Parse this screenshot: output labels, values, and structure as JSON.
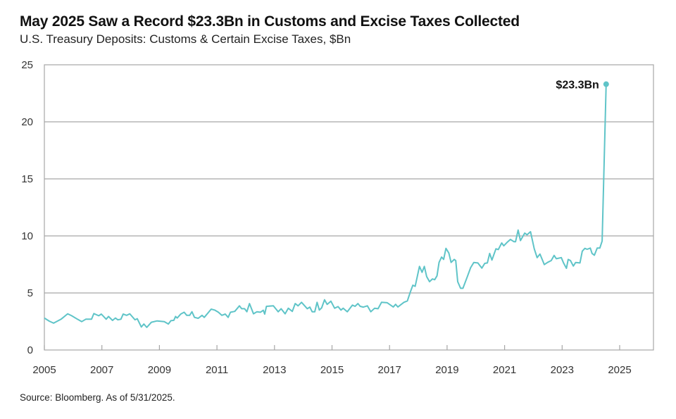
{
  "title": "May 2025 Saw a Record $23.3Bn in Customs and Excise Taxes Collected",
  "subtitle": "U.S. Treasury Deposits: Customs & Certain Excise Taxes, $Bn",
  "source": "Source: Bloomberg. As of 5/31/2025.",
  "colors": {
    "line": "#5fc4c8",
    "grid": "#a6a6a6",
    "axis": "#a6a6a6"
  },
  "chart_data": {
    "type": "line",
    "title": "May 2025 Saw a Record $23.3Bn in Customs and Excise Taxes Collected",
    "subtitle": "U.S. Treasury Deposits: Customs & Certain Excise Taxes, $Bn",
    "xlabel": "",
    "ylabel": "",
    "xlim": [
      2005,
      2026.2
    ],
    "ylim": [
      0,
      25
    ],
    "x_ticks": [
      "2005",
      "2007",
      "2009",
      "2011",
      "2013",
      "2015",
      "2017",
      "2019",
      "2021",
      "2023",
      "2025"
    ],
    "y_ticks": [
      "0",
      "5",
      "10",
      "15",
      "20",
      "25"
    ],
    "grid": "horizontal",
    "annotation": "$23.3Bn",
    "series": [
      {
        "points": [
          [
            2005.0,
            2.8
          ],
          [
            2005.17,
            2.53
          ],
          [
            2005.32,
            2.35
          ],
          [
            2005.58,
            2.7
          ],
          [
            2005.81,
            3.17
          ],
          [
            2005.95,
            3.0
          ],
          [
            2006.15,
            2.7
          ],
          [
            2006.3,
            2.49
          ],
          [
            2006.44,
            2.7
          ],
          [
            2006.64,
            2.7
          ],
          [
            2006.72,
            3.19
          ],
          [
            2006.89,
            3.0
          ],
          [
            2006.98,
            3.15
          ],
          [
            2007.15,
            2.7
          ],
          [
            2007.23,
            2.94
          ],
          [
            2007.37,
            2.59
          ],
          [
            2007.47,
            2.8
          ],
          [
            2007.55,
            2.65
          ],
          [
            2007.66,
            2.7
          ],
          [
            2007.74,
            3.15
          ],
          [
            2007.86,
            3.04
          ],
          [
            2007.97,
            3.17
          ],
          [
            2008.15,
            2.65
          ],
          [
            2008.23,
            2.74
          ],
          [
            2008.37,
            2.02
          ],
          [
            2008.46,
            2.28
          ],
          [
            2008.56,
            1.98
          ],
          [
            2008.72,
            2.43
          ],
          [
            2008.92,
            2.55
          ],
          [
            2009.17,
            2.49
          ],
          [
            2009.31,
            2.28
          ],
          [
            2009.4,
            2.57
          ],
          [
            2009.5,
            2.6
          ],
          [
            2009.56,
            2.94
          ],
          [
            2009.62,
            2.8
          ],
          [
            2009.74,
            3.15
          ],
          [
            2009.86,
            3.31
          ],
          [
            2009.95,
            3.04
          ],
          [
            2010.05,
            3.04
          ],
          [
            2010.13,
            3.35
          ],
          [
            2010.22,
            2.86
          ],
          [
            2010.35,
            2.78
          ],
          [
            2010.48,
            3.04
          ],
          [
            2010.56,
            2.86
          ],
          [
            2010.8,
            3.58
          ],
          [
            2010.92,
            3.5
          ],
          [
            2011.05,
            3.31
          ],
          [
            2011.17,
            3.04
          ],
          [
            2011.29,
            3.15
          ],
          [
            2011.39,
            2.86
          ],
          [
            2011.47,
            3.31
          ],
          [
            2011.62,
            3.38
          ],
          [
            2011.78,
            3.87
          ],
          [
            2011.86,
            3.62
          ],
          [
            2011.96,
            3.62
          ],
          [
            2012.04,
            3.35
          ],
          [
            2012.13,
            4.07
          ],
          [
            2012.27,
            3.17
          ],
          [
            2012.39,
            3.35
          ],
          [
            2012.51,
            3.31
          ],
          [
            2012.61,
            3.48
          ],
          [
            2012.66,
            3.15
          ],
          [
            2012.72,
            3.83
          ],
          [
            2012.96,
            3.87
          ],
          [
            2013.13,
            3.35
          ],
          [
            2013.23,
            3.62
          ],
          [
            2013.37,
            3.17
          ],
          [
            2013.48,
            3.66
          ],
          [
            2013.62,
            3.38
          ],
          [
            2013.72,
            4.07
          ],
          [
            2013.82,
            3.87
          ],
          [
            2013.94,
            4.18
          ],
          [
            2014.14,
            3.62
          ],
          [
            2014.23,
            3.76
          ],
          [
            2014.31,
            3.35
          ],
          [
            2014.4,
            3.35
          ],
          [
            2014.48,
            4.18
          ],
          [
            2014.56,
            3.5
          ],
          [
            2014.64,
            3.7
          ],
          [
            2014.74,
            4.4
          ],
          [
            2014.83,
            4.0
          ],
          [
            2014.96,
            4.28
          ],
          [
            2015.09,
            3.66
          ],
          [
            2015.21,
            3.8
          ],
          [
            2015.31,
            3.5
          ],
          [
            2015.39,
            3.66
          ],
          [
            2015.53,
            3.35
          ],
          [
            2015.71,
            3.93
          ],
          [
            2015.8,
            3.83
          ],
          [
            2015.9,
            4.07
          ],
          [
            2015.98,
            3.83
          ],
          [
            2016.09,
            3.76
          ],
          [
            2016.23,
            3.87
          ],
          [
            2016.35,
            3.35
          ],
          [
            2016.48,
            3.66
          ],
          [
            2016.6,
            3.62
          ],
          [
            2016.72,
            4.18
          ],
          [
            2016.92,
            4.14
          ],
          [
            2017.13,
            3.77
          ],
          [
            2017.21,
            4.0
          ],
          [
            2017.29,
            3.77
          ],
          [
            2017.5,
            4.18
          ],
          [
            2017.62,
            4.3
          ],
          [
            2017.72,
            5.06
          ],
          [
            2017.81,
            5.68
          ],
          [
            2017.89,
            5.58
          ],
          [
            2018.04,
            7.33
          ],
          [
            2018.13,
            6.81
          ],
          [
            2018.21,
            7.33
          ],
          [
            2018.29,
            6.44
          ],
          [
            2018.39,
            5.99
          ],
          [
            2018.49,
            6.23
          ],
          [
            2018.57,
            6.16
          ],
          [
            2018.65,
            6.5
          ],
          [
            2018.72,
            7.67
          ],
          [
            2018.81,
            8.15
          ],
          [
            2018.88,
            7.94
          ],
          [
            2018.96,
            8.91
          ],
          [
            2019.06,
            8.5
          ],
          [
            2019.14,
            7.67
          ],
          [
            2019.25,
            7.94
          ],
          [
            2019.3,
            7.84
          ],
          [
            2019.37,
            5.99
          ],
          [
            2019.47,
            5.41
          ],
          [
            2019.55,
            5.41
          ],
          [
            2019.7,
            6.4
          ],
          [
            2019.82,
            7.22
          ],
          [
            2019.93,
            7.67
          ],
          [
            2020.07,
            7.63
          ],
          [
            2020.21,
            7.18
          ],
          [
            2020.31,
            7.59
          ],
          [
            2020.4,
            7.63
          ],
          [
            2020.48,
            8.46
          ],
          [
            2020.56,
            7.88
          ],
          [
            2020.7,
            8.87
          ],
          [
            2020.78,
            8.8
          ],
          [
            2020.9,
            9.38
          ],
          [
            2020.97,
            9.13
          ],
          [
            2021.08,
            9.42
          ],
          [
            2021.2,
            9.69
          ],
          [
            2021.33,
            9.49
          ],
          [
            2021.38,
            9.49
          ],
          [
            2021.47,
            10.51
          ],
          [
            2021.55,
            9.59
          ],
          [
            2021.7,
            10.25
          ],
          [
            2021.78,
            10.1
          ],
          [
            2021.9,
            10.37
          ],
          [
            2022.03,
            8.87
          ],
          [
            2022.13,
            8.09
          ],
          [
            2022.23,
            8.41
          ],
          [
            2022.38,
            7.49
          ],
          [
            2022.49,
            7.67
          ],
          [
            2022.62,
            7.84
          ],
          [
            2022.72,
            8.29
          ],
          [
            2022.8,
            8.0
          ],
          [
            2022.97,
            8.1
          ],
          [
            2023.05,
            7.63
          ],
          [
            2023.15,
            7.16
          ],
          [
            2023.21,
            7.94
          ],
          [
            2023.29,
            7.84
          ],
          [
            2023.39,
            7.36
          ],
          [
            2023.47,
            7.67
          ],
          [
            2023.62,
            7.63
          ],
          [
            2023.7,
            8.66
          ],
          [
            2023.79,
            8.91
          ],
          [
            2023.87,
            8.83
          ],
          [
            2023.98,
            8.93
          ],
          [
            2024.04,
            8.46
          ],
          [
            2024.12,
            8.31
          ],
          [
            2024.22,
            8.93
          ],
          [
            2024.31,
            8.93
          ],
          [
            2024.39,
            9.55
          ],
          [
            2024.53,
            23.3
          ]
        ]
      }
    ]
  }
}
